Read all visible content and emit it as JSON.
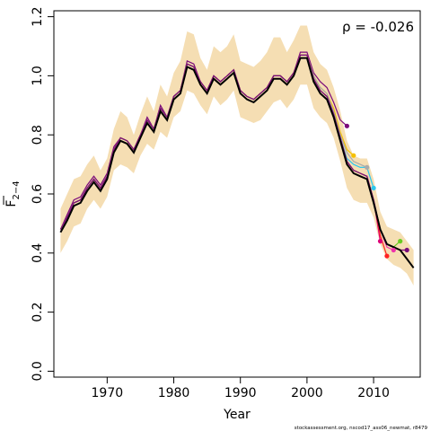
{
  "chart_data": {
    "type": "line",
    "xlabel": "Year",
    "ylabel_main": "F",
    "ylabel_sub": "2−4",
    "annotation": "ρ = -0.026",
    "credit": "stockassessment.org, nscod17_ass06_newmat, r8479",
    "xlim": [
      1962,
      2017
    ],
    "ylim": [
      -0.02,
      1.22
    ],
    "x_ticks": [
      1970,
      1980,
      1990,
      2000,
      2010
    ],
    "x_tick_labels": [
      "1970",
      "1980",
      "1990",
      "2000",
      "2010"
    ],
    "y_ticks": [
      0.0,
      0.2,
      0.4,
      0.6,
      0.8,
      1.0,
      1.2
    ],
    "y_tick_labels": [
      "0.0",
      "0.2",
      "0.4",
      "0.6",
      "0.8",
      "1.0",
      "1.2"
    ],
    "grid": false,
    "colors": {
      "band": "#f5deb3",
      "base": "#000000",
      "peels": [
        "#7b0a7b",
        "#f5c000",
        "#aaaaaa",
        "#2ec8ee",
        "#dd0077",
        "#ff2222",
        "#ee33aa",
        "#66cc22",
        "#7b0a7b"
      ]
    },
    "confidence_band": {
      "x": [
        1963,
        1964,
        1965,
        1966,
        1967,
        1968,
        1969,
        1970,
        1971,
        1972,
        1973,
        1974,
        1975,
        1976,
        1977,
        1978,
        1979,
        1980,
        1981,
        1982,
        1983,
        1984,
        1985,
        1986,
        1987,
        1988,
        1989,
        1990,
        1991,
        1992,
        1993,
        1994,
        1995,
        1996,
        1997,
        1998,
        1999,
        2000,
        2001,
        2002,
        2003,
        2004,
        2005,
        2006,
        2007,
        2008,
        2009,
        2010,
        2011,
        2012,
        2013,
        2014,
        2015,
        2016
      ],
      "upper": [
        0.55,
        0.6,
        0.65,
        0.66,
        0.7,
        0.73,
        0.68,
        0.72,
        0.82,
        0.88,
        0.86,
        0.8,
        0.87,
        0.93,
        0.88,
        0.97,
        0.93,
        1.01,
        1.05,
        1.15,
        1.14,
        1.06,
        1.02,
        1.1,
        1.08,
        1.1,
        1.14,
        1.05,
        1.04,
        1.03,
        1.05,
        1.08,
        1.13,
        1.13,
        1.08,
        1.12,
        1.17,
        1.17,
        1.08,
        1.04,
        1.02,
        0.96,
        0.88,
        0.78,
        0.73,
        0.72,
        0.72,
        0.65,
        0.54,
        0.49,
        0.48,
        0.47,
        0.44,
        0.41
      ],
      "lower": [
        0.4,
        0.44,
        0.49,
        0.5,
        0.55,
        0.58,
        0.55,
        0.59,
        0.68,
        0.7,
        0.69,
        0.67,
        0.73,
        0.77,
        0.75,
        0.81,
        0.79,
        0.86,
        0.88,
        0.95,
        0.94,
        0.9,
        0.87,
        0.93,
        0.9,
        0.92,
        0.95,
        0.86,
        0.85,
        0.84,
        0.85,
        0.88,
        0.91,
        0.92,
        0.89,
        0.92,
        0.97,
        0.97,
        0.89,
        0.86,
        0.84,
        0.79,
        0.71,
        0.62,
        0.58,
        0.57,
        0.57,
        0.52,
        0.43,
        0.38,
        0.36,
        0.35,
        0.33,
        0.29
      ]
    },
    "series": [
      {
        "x": [
          1963,
          1964,
          1965,
          1966,
          1967,
          1968,
          1969,
          1970,
          1971,
          1972,
          1973,
          1974,
          1975,
          1976,
          1977,
          1978,
          1979,
          1980,
          1981,
          1982,
          1983,
          1984,
          1985,
          1986,
          1987,
          1988,
          1989,
          1990,
          1991,
          1992,
          1993,
          1994,
          1995,
          1996,
          1997,
          1998,
          1999,
          2000,
          2001,
          2002,
          2003,
          2004,
          2005,
          2006,
          2007,
          2008,
          2009,
          2010,
          2011,
          2012,
          2013,
          2014,
          2015,
          2016
        ],
        "values": [
          0.47,
          0.51,
          0.56,
          0.57,
          0.61,
          0.64,
          0.61,
          0.65,
          0.74,
          0.78,
          0.77,
          0.74,
          0.79,
          0.84,
          0.81,
          0.88,
          0.85,
          0.92,
          0.94,
          1.03,
          1.02,
          0.97,
          0.94,
          0.99,
          0.97,
          0.99,
          1.01,
          0.94,
          0.92,
          0.91,
          0.93,
          0.95,
          0.99,
          0.99,
          0.97,
          1.0,
          1.06,
          1.06,
          0.98,
          0.94,
          0.92,
          0.86,
          0.78,
          0.7,
          0.67,
          0.66,
          0.65,
          0.57,
          0.48,
          0.43,
          0.42,
          0.41,
          0.38,
          0.35
        ]
      },
      {
        "x": [
          1963,
          1964,
          1965,
          1966,
          1967,
          1968,
          1969,
          1970,
          1971,
          1972,
          1973,
          1974,
          1975,
          1976,
          1977,
          1978,
          1979,
          1980,
          1981,
          1982,
          1983,
          1984,
          1985,
          1986,
          1987,
          1988,
          1989,
          1990,
          1991,
          1992,
          1993,
          1994,
          1995,
          1996,
          1997,
          1998,
          1999,
          2000,
          2001,
          2002,
          2003,
          2004,
          2005,
          2006
        ],
        "values": [
          0.48,
          0.53,
          0.58,
          0.59,
          0.63,
          0.66,
          0.63,
          0.67,
          0.76,
          0.79,
          0.78,
          0.75,
          0.8,
          0.86,
          0.82,
          0.9,
          0.86,
          0.93,
          0.95,
          1.05,
          1.04,
          0.98,
          0.95,
          1.0,
          0.98,
          1.0,
          1.02,
          0.95,
          0.93,
          0.92,
          0.94,
          0.96,
          1.0,
          1.0,
          0.98,
          1.01,
          1.08,
          1.08,
          1.01,
          0.98,
          0.96,
          0.91,
          0.85,
          0.83
        ]
      },
      {
        "x": [
          1963,
          1964,
          1965,
          1966,
          1967,
          1968,
          1969,
          1970,
          1971,
          1972,
          1973,
          1974,
          1975,
          1976,
          1977,
          1978,
          1979,
          1980,
          1981,
          1982,
          1983,
          1984,
          1985,
          1986,
          1987,
          1988,
          1989,
          1990,
          1991,
          1992,
          1993,
          1994,
          1995,
          1996,
          1997,
          1998,
          1999,
          2000,
          2001,
          2002,
          2003,
          2004,
          2005,
          2006,
          2007
        ],
        "values": [
          0.48,
          0.52,
          0.57,
          0.58,
          0.62,
          0.65,
          0.62,
          0.66,
          0.75,
          0.79,
          0.78,
          0.75,
          0.8,
          0.85,
          0.82,
          0.89,
          0.86,
          0.93,
          0.95,
          1.04,
          1.03,
          0.98,
          0.95,
          1.0,
          0.98,
          1.0,
          1.02,
          0.95,
          0.93,
          0.92,
          0.94,
          0.96,
          1.0,
          1.0,
          0.98,
          1.01,
          1.07,
          1.07,
          1.0,
          0.96,
          0.94,
          0.89,
          0.81,
          0.75,
          0.73
        ]
      },
      {
        "x": [
          1963,
          1964,
          1965,
          1966,
          1967,
          1968,
          1969,
          1970,
          1971,
          1972,
          1973,
          1974,
          1975,
          1976,
          1977,
          1978,
          1979,
          1980,
          1981,
          1982,
          1983,
          1984,
          1985,
          1986,
          1987,
          1988,
          1989,
          1990,
          1991,
          1992,
          1993,
          1994,
          1995,
          1996,
          1997,
          1998,
          1999,
          2000,
          2001,
          2002,
          2003,
          2004,
          2005,
          2006,
          2007,
          2008,
          2009
        ],
        "values": [
          0.48,
          0.52,
          0.57,
          0.58,
          0.62,
          0.65,
          0.62,
          0.66,
          0.75,
          0.79,
          0.78,
          0.75,
          0.8,
          0.85,
          0.82,
          0.89,
          0.86,
          0.93,
          0.95,
          1.04,
          1.03,
          0.98,
          0.95,
          1.0,
          0.98,
          1.0,
          1.02,
          0.95,
          0.93,
          0.92,
          0.94,
          0.96,
          1.0,
          1.0,
          0.98,
          1.01,
          1.07,
          1.07,
          1.0,
          0.96,
          0.94,
          0.88,
          0.8,
          0.74,
          0.71,
          0.7,
          0.69
        ]
      },
      {
        "x": [
          1963,
          1964,
          1965,
          1966,
          1967,
          1968,
          1969,
          1970,
          1971,
          1972,
          1973,
          1974,
          1975,
          1976,
          1977,
          1978,
          1979,
          1980,
          1981,
          1982,
          1983,
          1984,
          1985,
          1986,
          1987,
          1988,
          1989,
          1990,
          1991,
          1992,
          1993,
          1994,
          1995,
          1996,
          1997,
          1998,
          1999,
          2000,
          2001,
          2002,
          2003,
          2004,
          2005,
          2006,
          2007,
          2008,
          2009,
          2010
        ],
        "values": [
          0.48,
          0.52,
          0.57,
          0.58,
          0.62,
          0.65,
          0.62,
          0.66,
          0.75,
          0.79,
          0.78,
          0.75,
          0.8,
          0.85,
          0.82,
          0.89,
          0.86,
          0.93,
          0.95,
          1.04,
          1.03,
          0.98,
          0.95,
          1.0,
          0.98,
          1.0,
          1.02,
          0.95,
          0.93,
          0.92,
          0.94,
          0.96,
          1.0,
          1.0,
          0.98,
          1.01,
          1.07,
          1.07,
          0.99,
          0.95,
          0.93,
          0.87,
          0.79,
          0.72,
          0.7,
          0.69,
          0.69,
          0.62
        ]
      },
      {
        "x": [
          1963,
          1964,
          1965,
          1966,
          1967,
          1968,
          1969,
          1970,
          1971,
          1972,
          1973,
          1974,
          1975,
          1976,
          1977,
          1978,
          1979,
          1980,
          1981,
          1982,
          1983,
          1984,
          1985,
          1986,
          1987,
          1988,
          1989,
          1990,
          1991,
          1992,
          1993,
          1994,
          1995,
          1996,
          1997,
          1998,
          1999,
          2000,
          2001,
          2002,
          2003,
          2004,
          2005,
          2006,
          2007,
          2008,
          2009,
          2010,
          2011
        ],
        "values": [
          0.48,
          0.52,
          0.57,
          0.58,
          0.62,
          0.65,
          0.62,
          0.66,
          0.75,
          0.79,
          0.78,
          0.75,
          0.8,
          0.85,
          0.82,
          0.89,
          0.86,
          0.93,
          0.95,
          1.04,
          1.03,
          0.98,
          0.95,
          1.0,
          0.98,
          1.0,
          1.02,
          0.95,
          0.93,
          0.92,
          0.94,
          0.96,
          1.0,
          1.0,
          0.98,
          1.01,
          1.07,
          1.07,
          0.99,
          0.95,
          0.93,
          0.87,
          0.79,
          0.71,
          0.68,
          0.67,
          0.66,
          0.58,
          0.44
        ]
      },
      {
        "x": [
          1963,
          1964,
          1965,
          1966,
          1967,
          1968,
          1969,
          1970,
          1971,
          1972,
          1973,
          1974,
          1975,
          1976,
          1977,
          1978,
          1979,
          1980,
          1981,
          1982,
          1983,
          1984,
          1985,
          1986,
          1987,
          1988,
          1989,
          1990,
          1991,
          1992,
          1993,
          1994,
          1995,
          1996,
          1997,
          1998,
          1999,
          2000,
          2001,
          2002,
          2003,
          2004,
          2005,
          2006,
          2007,
          2008,
          2009,
          2010,
          2011,
          2012
        ],
        "values": [
          0.48,
          0.52,
          0.57,
          0.58,
          0.62,
          0.65,
          0.62,
          0.66,
          0.75,
          0.79,
          0.78,
          0.75,
          0.8,
          0.85,
          0.82,
          0.89,
          0.86,
          0.93,
          0.95,
          1.04,
          1.03,
          0.98,
          0.95,
          1.0,
          0.98,
          1.0,
          1.02,
          0.95,
          0.93,
          0.92,
          0.94,
          0.96,
          1.0,
          1.0,
          0.98,
          1.01,
          1.07,
          1.07,
          0.99,
          0.95,
          0.93,
          0.87,
          0.79,
          0.71,
          0.68,
          0.67,
          0.66,
          0.58,
          0.46,
          0.39
        ]
      },
      {
        "x": [
          1963,
          1964,
          1965,
          1966,
          1967,
          1968,
          1969,
          1970,
          1971,
          1972,
          1973,
          1974,
          1975,
          1976,
          1977,
          1978,
          1979,
          1980,
          1981,
          1982,
          1983,
          1984,
          1985,
          1986,
          1987,
          1988,
          1989,
          1990,
          1991,
          1992,
          1993,
          1994,
          1995,
          1996,
          1997,
          1998,
          1999,
          2000,
          2001,
          2002,
          2003,
          2004,
          2005,
          2006,
          2007,
          2008,
          2009,
          2010,
          2011,
          2012,
          2013
        ],
        "values": [
          0.48,
          0.52,
          0.57,
          0.58,
          0.62,
          0.65,
          0.62,
          0.66,
          0.75,
          0.79,
          0.78,
          0.75,
          0.8,
          0.85,
          0.82,
          0.89,
          0.86,
          0.93,
          0.95,
          1.04,
          1.03,
          0.98,
          0.95,
          1.0,
          0.98,
          1.0,
          1.02,
          0.95,
          0.93,
          0.92,
          0.94,
          0.96,
          1.0,
          1.0,
          0.98,
          1.01,
          1.07,
          1.07,
          0.99,
          0.95,
          0.93,
          0.87,
          0.79,
          0.71,
          0.68,
          0.67,
          0.66,
          0.58,
          0.48,
          0.42,
          0.41
        ]
      },
      {
        "x": [
          1963,
          1964,
          1965,
          1966,
          1967,
          1968,
          1969,
          1970,
          1971,
          1972,
          1973,
          1974,
          1975,
          1976,
          1977,
          1978,
          1979,
          1980,
          1981,
          1982,
          1983,
          1984,
          1985,
          1986,
          1987,
          1988,
          1989,
          1990,
          1991,
          1992,
          1993,
          1994,
          1995,
          1996,
          1997,
          1998,
          1999,
          2000,
          2001,
          2002,
          2003,
          2004,
          2005,
          2006,
          2007,
          2008,
          2009,
          2010,
          2011,
          2012,
          2013,
          2014
        ],
        "values": [
          0.48,
          0.52,
          0.57,
          0.58,
          0.62,
          0.65,
          0.62,
          0.66,
          0.75,
          0.79,
          0.78,
          0.75,
          0.8,
          0.85,
          0.82,
          0.89,
          0.86,
          0.93,
          0.95,
          1.04,
          1.03,
          0.98,
          0.95,
          1.0,
          0.98,
          1.0,
          1.02,
          0.95,
          0.93,
          0.92,
          0.94,
          0.96,
          1.0,
          1.0,
          0.98,
          1.01,
          1.07,
          1.07,
          0.99,
          0.95,
          0.93,
          0.87,
          0.79,
          0.71,
          0.68,
          0.67,
          0.66,
          0.58,
          0.48,
          0.43,
          0.42,
          0.44
        ]
      },
      {
        "x": [
          1963,
          1964,
          1965,
          1966,
          1967,
          1968,
          1969,
          1970,
          1971,
          1972,
          1973,
          1974,
          1975,
          1976,
          1977,
          1978,
          1979,
          1980,
          1981,
          1982,
          1983,
          1984,
          1985,
          1986,
          1987,
          1988,
          1989,
          1990,
          1991,
          1992,
          1993,
          1994,
          1995,
          1996,
          1997,
          1998,
          1999,
          2000,
          2001,
          2002,
          2003,
          2004,
          2005,
          2006,
          2007,
          2008,
          2009,
          2010,
          2011,
          2012,
          2013,
          2014,
          2015
        ],
        "values": [
          0.48,
          0.52,
          0.57,
          0.58,
          0.62,
          0.65,
          0.62,
          0.66,
          0.75,
          0.79,
          0.78,
          0.75,
          0.8,
          0.85,
          0.82,
          0.89,
          0.86,
          0.93,
          0.95,
          1.04,
          1.03,
          0.98,
          0.95,
          1.0,
          0.98,
          1.0,
          1.02,
          0.95,
          0.93,
          0.92,
          0.94,
          0.96,
          1.0,
          1.0,
          0.98,
          1.01,
          1.07,
          1.07,
          0.99,
          0.95,
          0.93,
          0.87,
          0.79,
          0.71,
          0.68,
          0.67,
          0.66,
          0.58,
          0.48,
          0.43,
          0.42,
          0.41,
          0.41
        ]
      }
    ]
  }
}
